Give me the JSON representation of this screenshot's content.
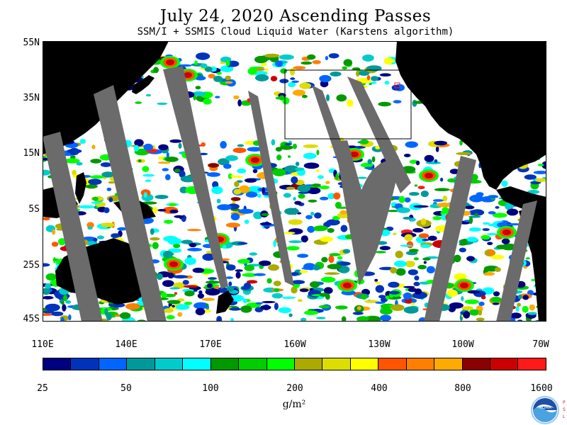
{
  "header": {
    "title": "July 24, 2020  Ascending Passes",
    "subtitle": "SSM/I + SSMIS Cloud Liquid Water (Karstens algorithm)"
  },
  "map": {
    "lat_labels": [
      "55N",
      "35N",
      "15N",
      "5S",
      "25S",
      "45S"
    ],
    "lon_labels": [
      "110E",
      "140E",
      "170E",
      "160W",
      "130W",
      "100W",
      "70W"
    ],
    "colors": {
      "background_clear": "#ffffff",
      "land": "#000000",
      "no_data_swath_gap": "#6b6b6b"
    }
  },
  "colorbar": {
    "tick_labels": [
      "25",
      "50",
      "100",
      "200",
      "400",
      "800",
      "1600"
    ],
    "units": "g/m²",
    "colors": [
      "#00007f",
      "#0033bb",
      "#0066ff",
      "#009999",
      "#00cccc",
      "#00ffff",
      "#009900",
      "#00cc00",
      "#00ff00",
      "#aaaa00",
      "#dddd00",
      "#ffff00",
      "#ff5500",
      "#ff7f00",
      "#ffaa00",
      "#8b0000",
      "#cc0000",
      "#ff1a1a"
    ]
  },
  "logo": {
    "name": "NOAA",
    "side_text": "PSL"
  }
}
